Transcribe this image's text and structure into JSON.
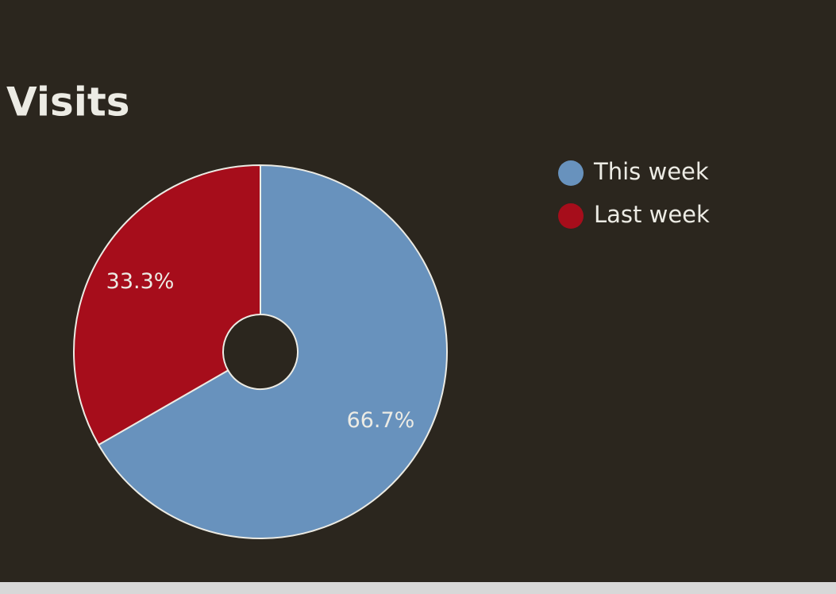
{
  "chart_data": {
    "type": "donut",
    "title": "Visits",
    "categories": [
      "This week",
      "Last week"
    ],
    "values": [
      66.7,
      33.3
    ],
    "value_labels": [
      "66.7%",
      "33.3%"
    ],
    "colors": [
      "#6892bd",
      "#a60d1b"
    ],
    "legend": "right"
  }
}
